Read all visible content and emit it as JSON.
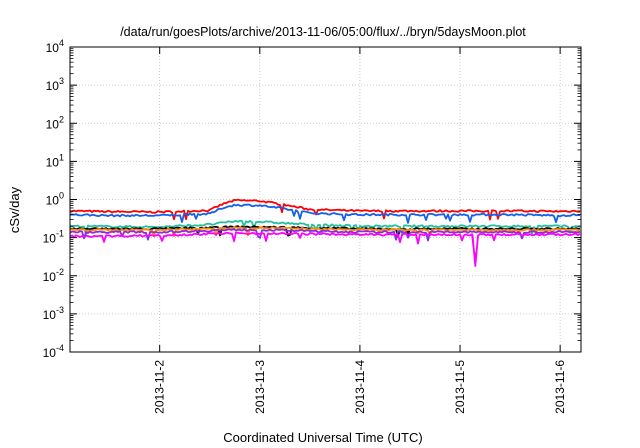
{
  "chart_data": {
    "type": "line",
    "title": "/data/run/goesPlots/archive/2013-11-06/05:00/flux/../bryn/5daysMoon.plot",
    "xlabel": "Coordinated Universal Time (UTC)",
    "ylabel": "cSv/day",
    "xscale": "time",
    "x_range": [
      "2013-11-01T02:30",
      "2013-11-06T05:00"
    ],
    "x_ticks": [
      "2013-11-2",
      "2013-11-3",
      "2013-11-4",
      "2013-11-5",
      "2013-11-6"
    ],
    "yscale": "log",
    "ylim": [
      0.0001,
      10000
    ],
    "y_ticks": [
      {
        "base": "10",
        "exp": "-4"
      },
      {
        "base": "10",
        "exp": "-3"
      },
      {
        "base": "10",
        "exp": "-2"
      },
      {
        "base": "10",
        "exp": "-1"
      },
      {
        "base": "10",
        "exp": "0"
      },
      {
        "base": "10",
        "exp": "1"
      },
      {
        "base": "10",
        "exp": "2"
      },
      {
        "base": "10",
        "exp": "3"
      },
      {
        "base": "10",
        "exp": "4"
      }
    ],
    "grid": true,
    "legend": "none",
    "series": [
      {
        "color": "#ff0000",
        "x": [
          "2013-11-01T03:00",
          "2013-11-01T12:00",
          "2013-11-02T00:00",
          "2013-11-02T12:00",
          "2013-11-02T15:00",
          "2013-11-02T18:00",
          "2013-11-03T00:00",
          "2013-11-03T06:00",
          "2013-11-03T12:00",
          "2013-11-04T00:00",
          "2013-11-04T12:00",
          "2013-11-05T00:00",
          "2013-11-05T12:00",
          "2013-11-06T00:00",
          "2013-11-06T05:00"
        ],
        "values": [
          0.5,
          0.48,
          0.47,
          0.52,
          0.75,
          0.95,
          0.92,
          0.72,
          0.55,
          0.5,
          0.5,
          0.5,
          0.5,
          0.49,
          0.5
        ]
      },
      {
        "color": "#1560e8",
        "x": [
          "2013-11-01T03:00",
          "2013-11-01T12:00",
          "2013-11-02T00:00",
          "2013-11-02T12:00",
          "2013-11-02T15:00",
          "2013-11-02T18:00",
          "2013-11-03T00:00",
          "2013-11-03T06:00",
          "2013-11-03T12:00",
          "2013-11-04T00:00",
          "2013-11-04T12:00",
          "2013-11-05T00:00",
          "2013-11-05T12:00",
          "2013-11-06T00:00",
          "2013-11-06T05:00"
        ],
        "values": [
          0.4,
          0.38,
          0.38,
          0.42,
          0.6,
          0.72,
          0.7,
          0.57,
          0.44,
          0.4,
          0.4,
          0.4,
          0.4,
          0.38,
          0.4
        ]
      },
      {
        "color": "#20c0a0",
        "x": [
          "2013-11-01T03:00",
          "2013-11-02T00:00",
          "2013-11-02T12:00",
          "2013-11-02T18:00",
          "2013-11-03T00:00",
          "2013-11-03T12:00",
          "2013-11-04T00:00",
          "2013-11-05T00:00",
          "2013-11-06T05:00"
        ],
        "values": [
          0.2,
          0.19,
          0.22,
          0.27,
          0.26,
          0.22,
          0.2,
          0.2,
          0.2
        ]
      },
      {
        "color": "#000000",
        "x": [
          "2013-11-01T03:00",
          "2013-11-02T00:00",
          "2013-11-02T18:00",
          "2013-11-03T00:00",
          "2013-11-04T00:00",
          "2013-11-05T00:00",
          "2013-11-06T05:00"
        ],
        "values": [
          0.17,
          0.17,
          0.19,
          0.19,
          0.17,
          0.17,
          0.17
        ]
      },
      {
        "color": "#ff8c00",
        "x": [
          "2013-11-01T03:00",
          "2013-11-02T00:00",
          "2013-11-02T18:00",
          "2013-11-03T00:00",
          "2013-11-04T00:00",
          "2013-11-05T00:00",
          "2013-11-06T05:00"
        ],
        "values": [
          0.16,
          0.16,
          0.18,
          0.18,
          0.16,
          0.16,
          0.16
        ]
      },
      {
        "color": "#8a2be2",
        "x": [
          "2013-11-01T03:00",
          "2013-11-02T00:00",
          "2013-11-02T18:00",
          "2013-11-03T00:00",
          "2013-11-04T00:00",
          "2013-11-05T00:00",
          "2013-11-06T05:00"
        ],
        "values": [
          0.14,
          0.14,
          0.16,
          0.16,
          0.14,
          0.14,
          0.14
        ]
      },
      {
        "color": "#ff00ff",
        "x": [
          "2013-11-01T03:00",
          "2013-11-01T12:00",
          "2013-11-02T00:00",
          "2013-11-02T18:00",
          "2013-11-03T00:00",
          "2013-11-04T00:00",
          "2013-11-05T00:00",
          "2013-11-05T03:00",
          "2013-11-05T03:40",
          "2013-11-05T04:20",
          "2013-11-05T07:00",
          "2013-11-06T00:00",
          "2013-11-06T05:00"
        ],
        "values": [
          0.11,
          0.11,
          0.115,
          0.13,
          0.13,
          0.12,
          0.12,
          0.12,
          0.018,
          0.12,
          0.12,
          0.12,
          0.12
        ]
      }
    ]
  }
}
